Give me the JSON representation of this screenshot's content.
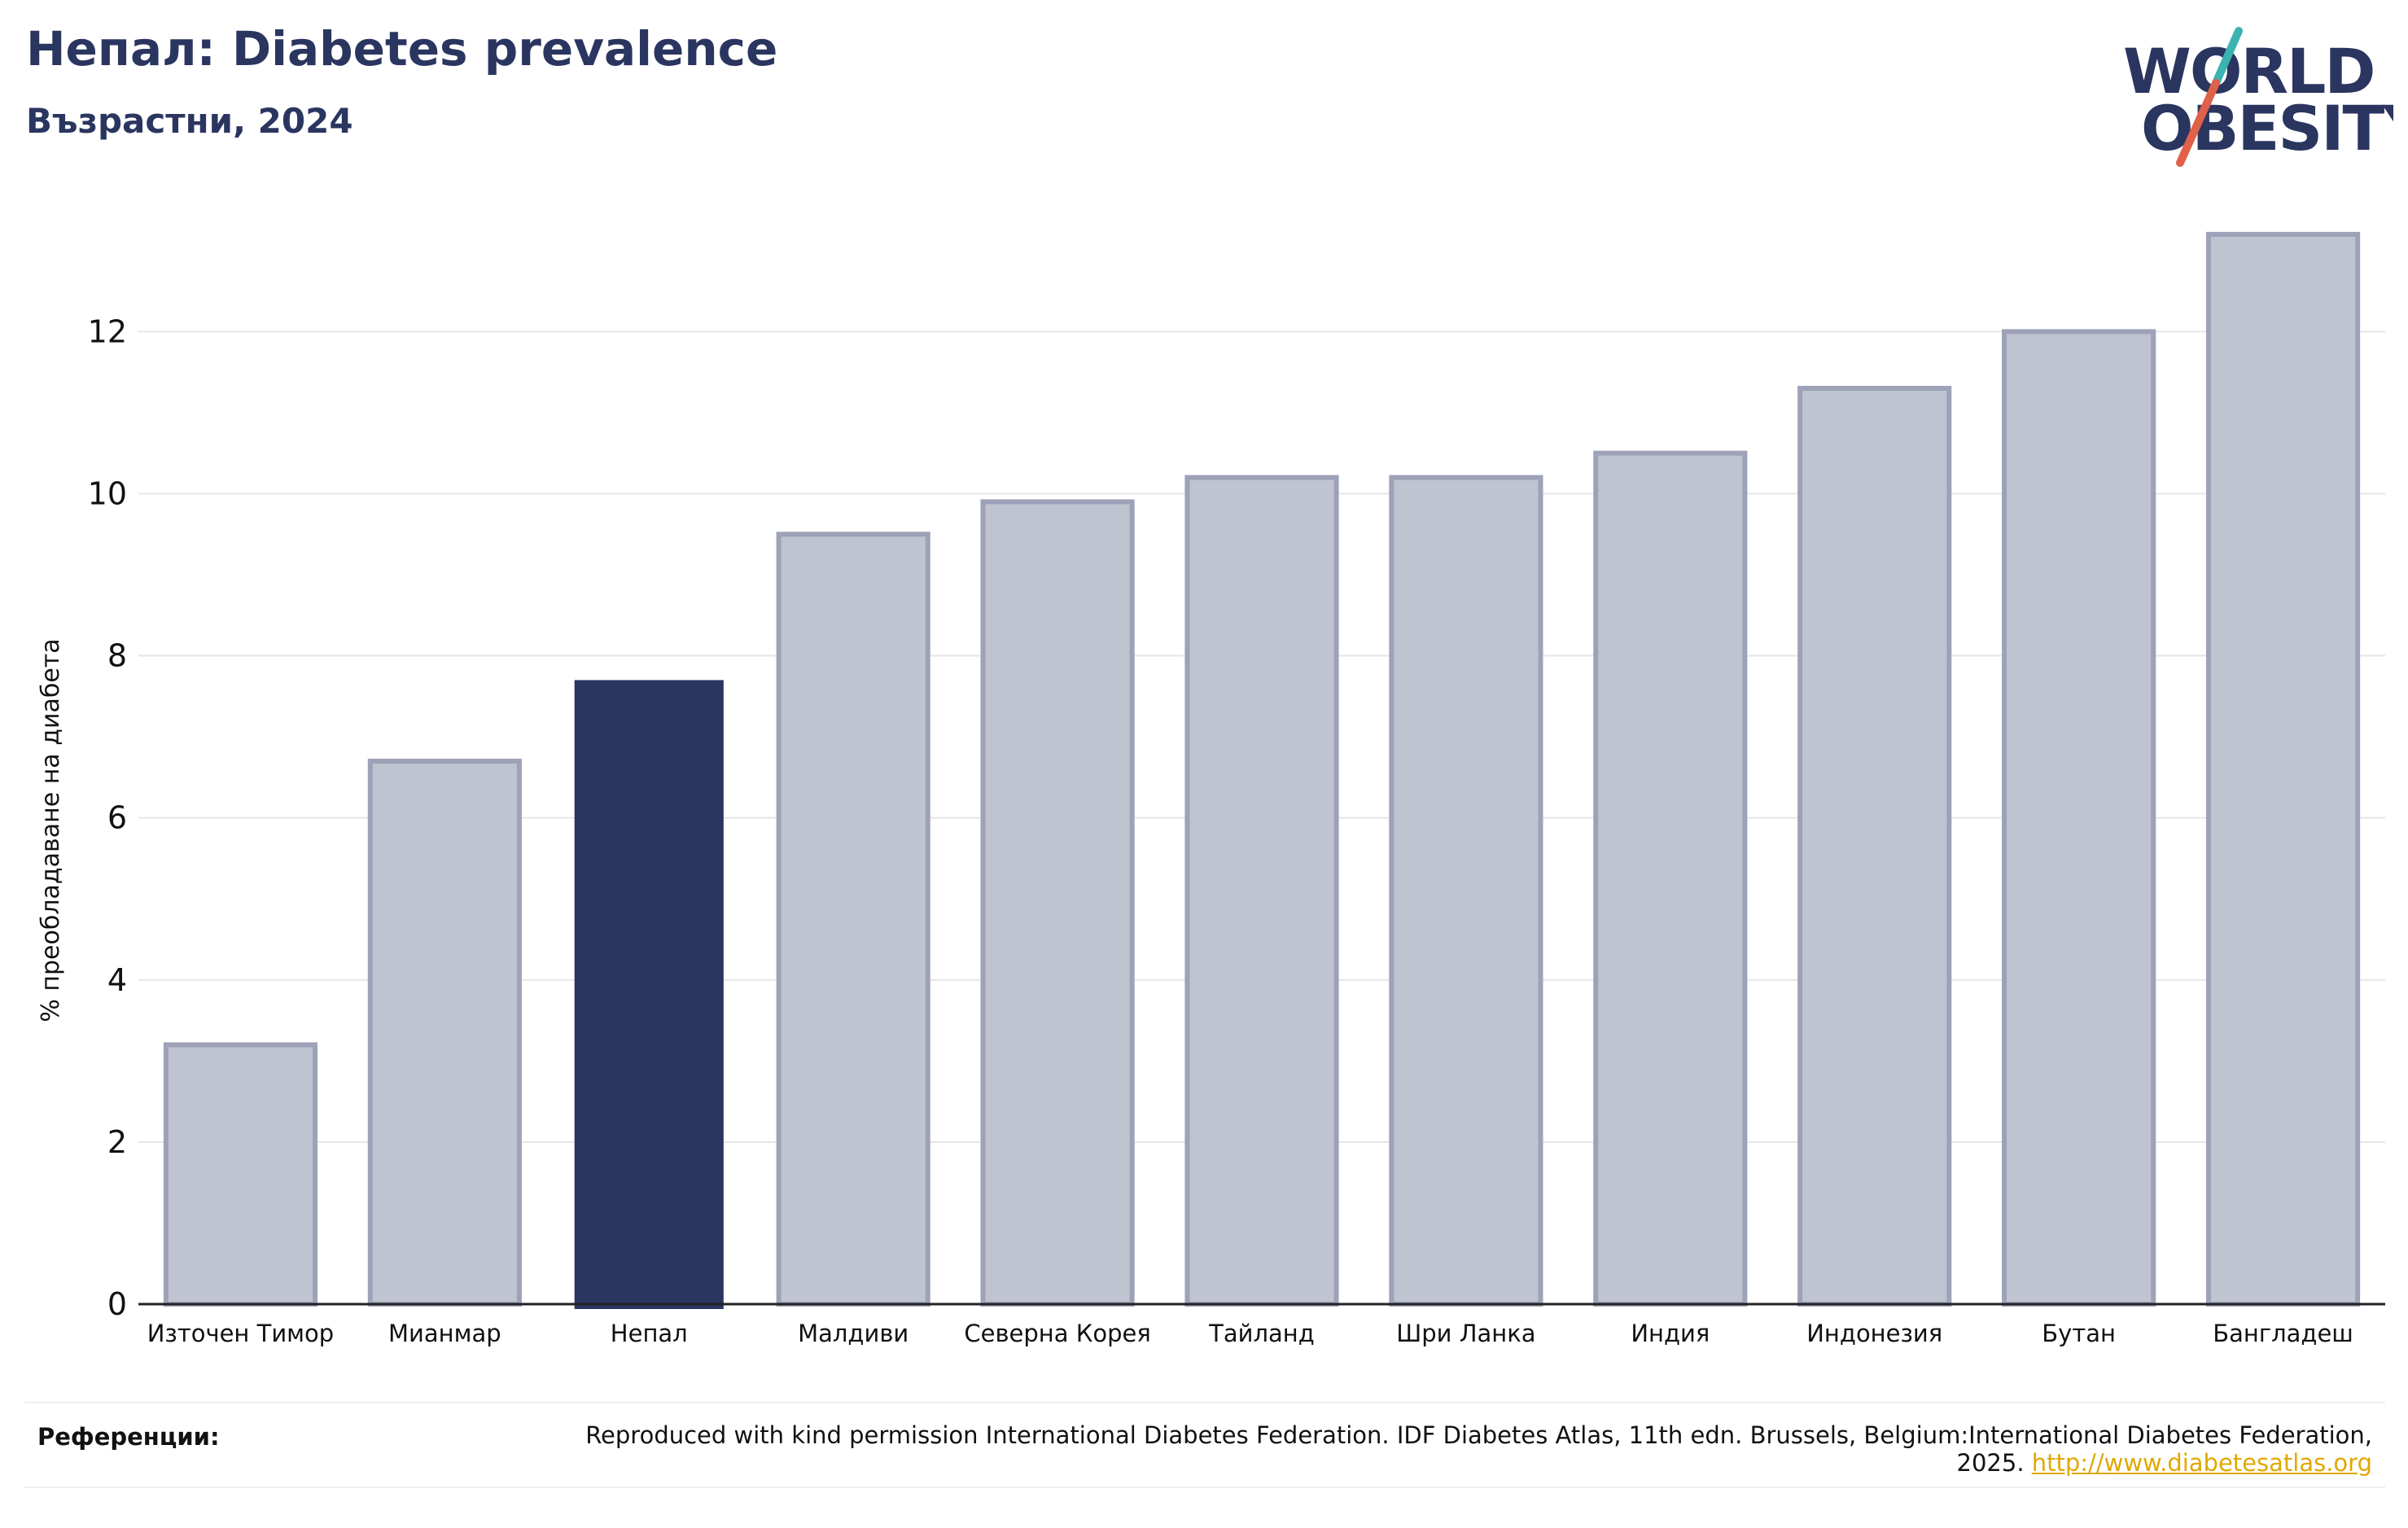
{
  "header": {
    "title": "Непал: Diabetes prevalence",
    "subtitle": "Възрастни, 2024"
  },
  "logo": {
    "line1": "WORLD",
    "line2": "OBESITY",
    "accent_teal": "#3bb3b0",
    "accent_coral": "#e0604a"
  },
  "references": {
    "label": "Референции:",
    "text": "Reproduced with kind permission International Diabetes Federation. IDF Diabetes Atlas, 11th edn. Brussels, Belgium:International Diabetes Federation, 2025.",
    "link": "http://www.diabetesatlas.org"
  },
  "colors": {
    "highlight": "#2a3560",
    "bar": "#c0c3d0",
    "bar_edge": "#9ea2b8",
    "grid": "#e6e6e6",
    "link": "#e0a800"
  },
  "chart_data": {
    "type": "bar",
    "title": "Непал: Diabetes prevalence",
    "subtitle": "Възрастни, 2024",
    "xlabel": "",
    "ylabel": "% преобладаване на диабета",
    "ylim": [
      0,
      13.5
    ],
    "yticks": [
      0,
      2,
      4,
      6,
      8,
      10,
      12
    ],
    "grid": true,
    "highlight": "Непал",
    "categories": [
      "Източен Тимор",
      "Мианмар",
      "Непал",
      "Малдиви",
      "Северна Корея",
      "Тайланд",
      "Шри Ланка",
      "Индия",
      "Индонезия",
      "Бутан",
      "Бангладеш"
    ],
    "values": [
      3.2,
      6.7,
      7.7,
      9.5,
      9.9,
      10.2,
      10.2,
      10.5,
      11.3,
      12.0,
      13.2
    ]
  }
}
